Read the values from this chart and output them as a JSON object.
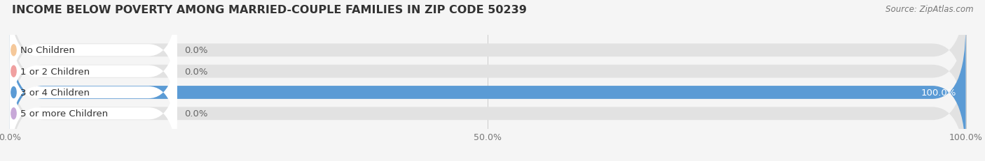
{
  "title": "INCOME BELOW POVERTY AMONG MARRIED-COUPLE FAMILIES IN ZIP CODE 50239",
  "source": "Source: ZipAtlas.com",
  "categories": [
    "No Children",
    "1 or 2 Children",
    "3 or 4 Children",
    "5 or more Children"
  ],
  "values": [
    0.0,
    0.0,
    100.0,
    0.0
  ],
  "bar_colors": [
    "#f5c89a",
    "#f0a0a0",
    "#5b9bd5",
    "#c8a8d8"
  ],
  "background_color": "#f5f5f5",
  "bar_bg_color": "#e2e2e2",
  "label_bg_color": "#ffffff",
  "figsize": [
    14.06,
    2.32
  ],
  "dpi": 100,
  "title_fontsize": 11.5,
  "label_fontsize": 9.5,
  "tick_fontsize": 9,
  "value_label_inside_color": "#ffffff",
  "value_label_outside_color": "#666666",
  "xlim_min": 0,
  "xlim_max": 100
}
